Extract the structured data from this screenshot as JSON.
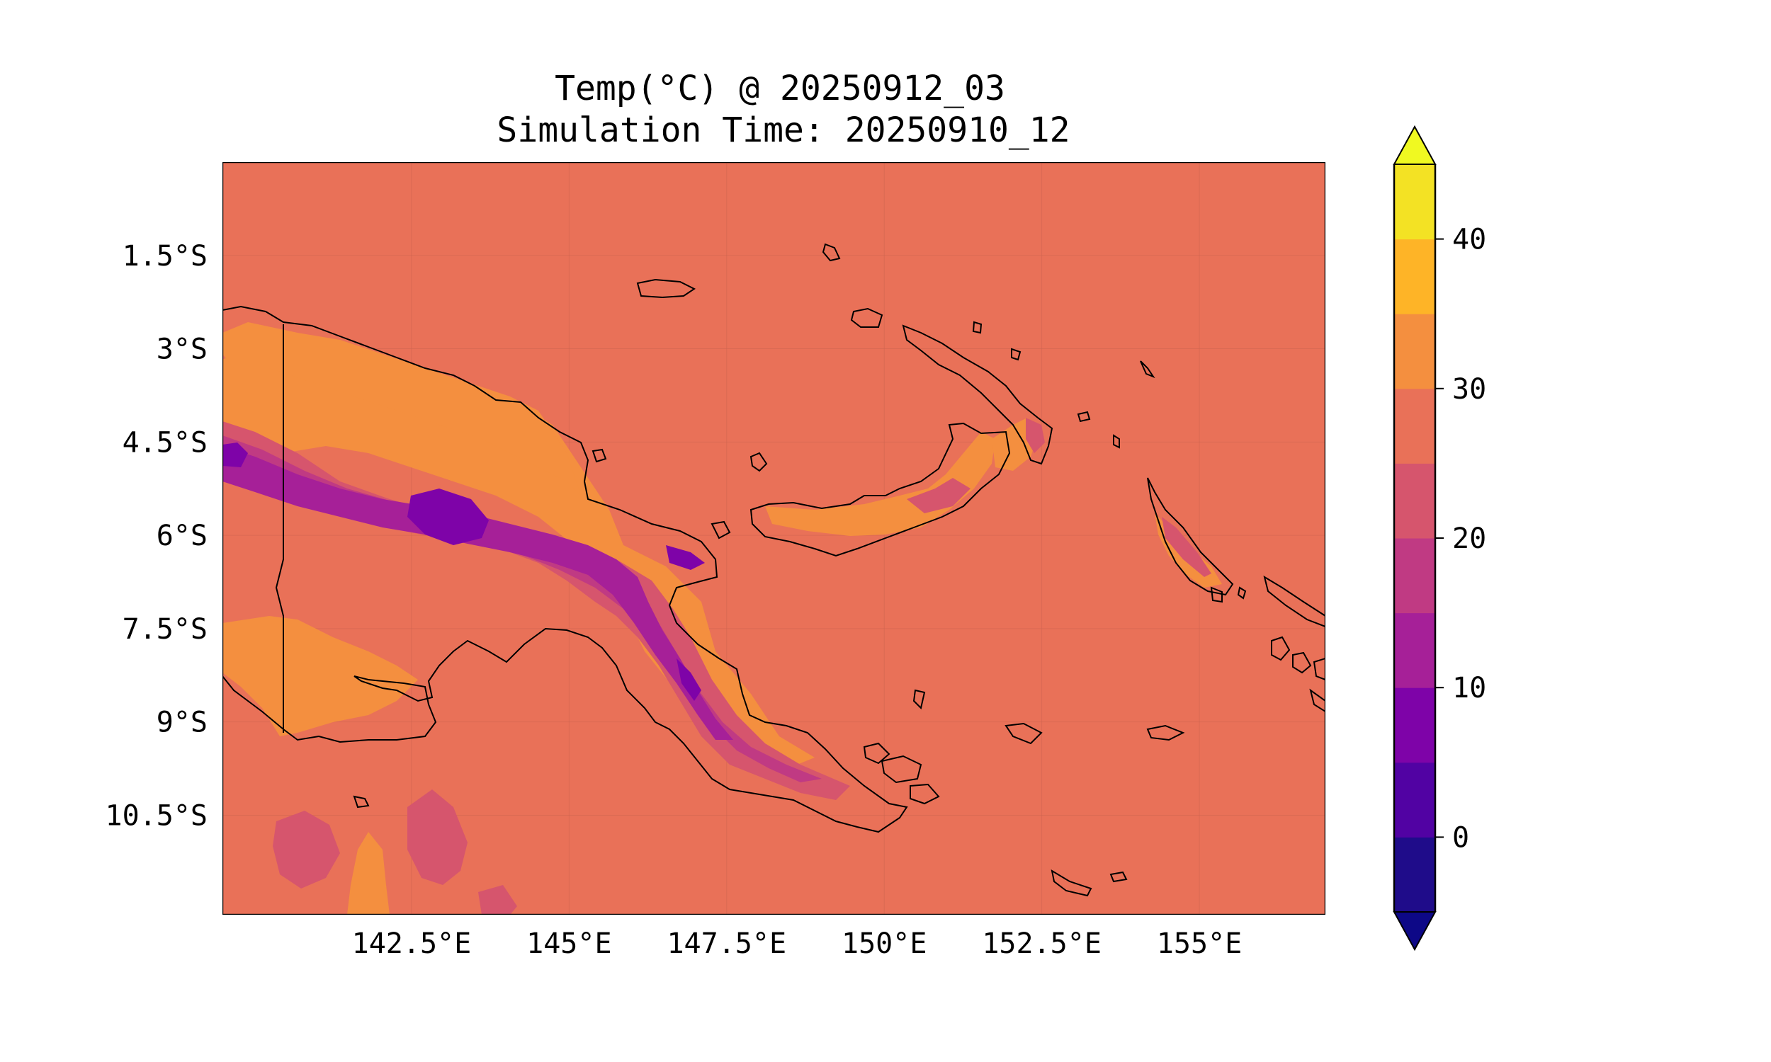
{
  "title": {
    "line1": "Temp(°C) @ 20250912_03",
    "line2": "Simulation Time: 20250910_12"
  },
  "map": {
    "extent": {
      "lon": [
        139.5,
        157.0
      ],
      "lat": [
        -12.1,
        0.0
      ]
    },
    "ocean_temp_band": "25–30",
    "x_ticks": [
      {
        "value": 142.5,
        "label": "142.5°E"
      },
      {
        "value": 145.0,
        "label": "145°E"
      },
      {
        "value": 147.5,
        "label": "147.5°E"
      },
      {
        "value": 150.0,
        "label": "150°E"
      },
      {
        "value": 152.5,
        "label": "152.5°E"
      },
      {
        "value": 155.0,
        "label": "155°E"
      }
    ],
    "y_ticks": [
      {
        "value": -1.5,
        "label": "1.5°S"
      },
      {
        "value": -3.0,
        "label": "3°S"
      },
      {
        "value": -4.5,
        "label": "4.5°S"
      },
      {
        "value": -6.0,
        "label": "6°S"
      },
      {
        "value": -7.5,
        "label": "7.5°S"
      },
      {
        "value": -9.0,
        "label": "9°S"
      },
      {
        "value": -10.5,
        "label": "10.5°S"
      }
    ],
    "gridlines": true
  },
  "colorbar": {
    "levels": [
      -5,
      0,
      5,
      10,
      15,
      20,
      25,
      30,
      35,
      40,
      45
    ],
    "colors": [
      "#1f0c8a",
      "#5102a3",
      "#7e03a8",
      "#a62098",
      "#c03a83",
      "#d6556d",
      "#e97158",
      "#f48f3f",
      "#feb427",
      "#f3e224"
    ],
    "under_color": "#0d0887",
    "over_color": "#f0f921",
    "ticks": [
      {
        "value": 0,
        "label": "0"
      },
      {
        "value": 10,
        "label": "10"
      },
      {
        "value": 20,
        "label": "20"
      },
      {
        "value": 30,
        "label": "30"
      },
      {
        "value": 40,
        "label": "40"
      }
    ],
    "extend": "both"
  },
  "colors": {
    "band_25_30": "#e97158",
    "band_30_35": "#f48f3f",
    "band_35_40": "#feb427",
    "band_20_25": "#d6556d",
    "band_15_20": "#c03a83",
    "band_10_15": "#a62098",
    "band_5_10": "#7e03a8",
    "coastline": "#000000"
  }
}
